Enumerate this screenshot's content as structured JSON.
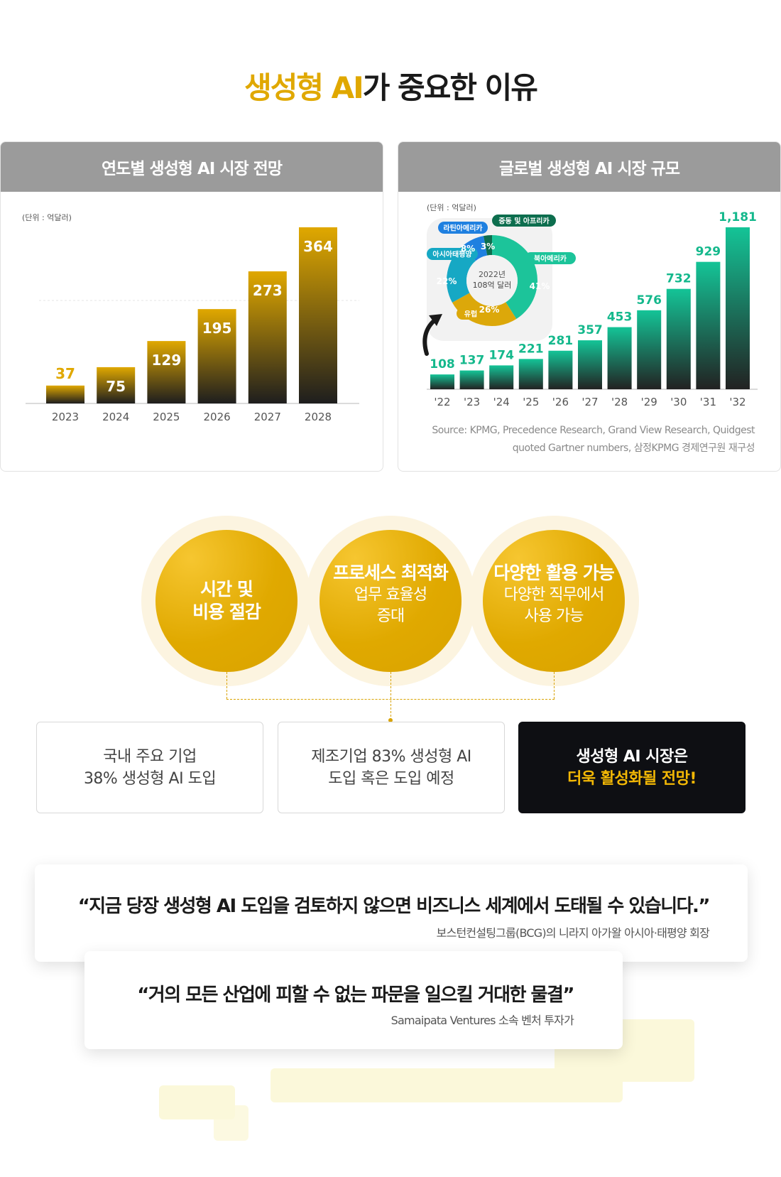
{
  "title": {
    "highlight": "생성형 AI",
    "rest": "가 중요한 이유"
  },
  "left_panel": {
    "title": "연도별 생성형 AI 시장 전망",
    "unit": "(단위 : 억달러)"
  },
  "right_panel": {
    "title": "글로벌 생성형 AI 시장 규모",
    "unit": "(단위 : 억달러)",
    "source_line1": "Source: KPMG, Precedence Research, Grand View Research, Quidgest",
    "source_line2": "quoted Gartner numbers, 삼정KPMG 경제연구원 재구성"
  },
  "chart_data": [
    {
      "type": "bar",
      "title": "연도별 생성형 AI 시장 전망",
      "unit": "(단위 : 억달러)",
      "categories": [
        "2023",
        "2024",
        "2025",
        "2026",
        "2027",
        "2028"
      ],
      "values": [
        37,
        75,
        129,
        195,
        273,
        364
      ],
      "colors": {
        "top": "#e0a800",
        "bottom": "#1e1e1e",
        "first_label": "#e0a800"
      },
      "grid": "single dashed line",
      "ylim": [
        0,
        364
      ]
    },
    {
      "type": "bar",
      "title": "글로벌 생성형 AI 시장 규모",
      "unit": "(단위 : 억달러)",
      "categories": [
        "'22",
        "'23",
        "'24",
        "'25",
        "'26",
        "'27",
        "'28",
        "'29",
        "'30",
        "'31",
        "'32"
      ],
      "values": [
        108,
        137,
        174,
        221,
        281,
        357,
        453,
        576,
        732,
        929,
        1181
      ],
      "value_labels": [
        "108",
        "137",
        "174",
        "221",
        "281",
        "357",
        "453",
        "576",
        "732",
        "929",
        "1,181"
      ],
      "colors": {
        "top": "#14c497",
        "bottom": "#222222",
        "label": "#14b88c"
      },
      "ylim": [
        0,
        1181
      ]
    },
    {
      "type": "pie",
      "style": "donut",
      "center_line1": "2022년",
      "center_line2": "108억 달러",
      "slices": [
        {
          "label": "북아메리카",
          "value": 41,
          "text": "41%",
          "color": "#1cc49a"
        },
        {
          "label": "유럽",
          "value": 26,
          "text": "26%",
          "color": "#dca80a"
        },
        {
          "label": "아시아태평양",
          "value": 22,
          "text": "22%",
          "color": "#16a8c4"
        },
        {
          "label": "라틴아메리카",
          "value": 8,
          "text": "8%",
          "color": "#1f80e0"
        },
        {
          "label": "중동 및 아프리카",
          "value": 3,
          "text": "3%",
          "color": "#0d6e4e"
        }
      ]
    }
  ],
  "circles": [
    {
      "title": "시간 및",
      "title2": "비용 절감"
    },
    {
      "title": "프로세스 최적화",
      "sub1": "업무 효율성",
      "sub2": "증대"
    },
    {
      "title": "다양한 활용 가능",
      "sub1": "다양한 직무에서",
      "sub2": "사용 가능"
    }
  ],
  "boxes": [
    {
      "line1": "국내 주요 기업",
      "line2": "38% 생성형 AI 도입"
    },
    {
      "line1": "제조기업 83% 생성형 AI",
      "line2": "도입 혹은 도입 예정"
    },
    {
      "line1": "생성형 AI 시장은",
      "line2": "더욱 활성화될 전망!"
    }
  ],
  "quotes": [
    {
      "text": "“지금 당장 생성형 AI 도입을 검토하지 않으면 비즈니스 세계에서 도태될 수 있습니다.”",
      "attribution": "보스턴컨설팅그룹(BCG)의 니라지 아가왈 아시아·태평양 회장"
    },
    {
      "text": "“거의 모든 산업에 피할 수 없는 파문을 일으킬 거대한 물결”",
      "attribution": "Samaipata Ventures 소속 벤처 투자가"
    }
  ]
}
